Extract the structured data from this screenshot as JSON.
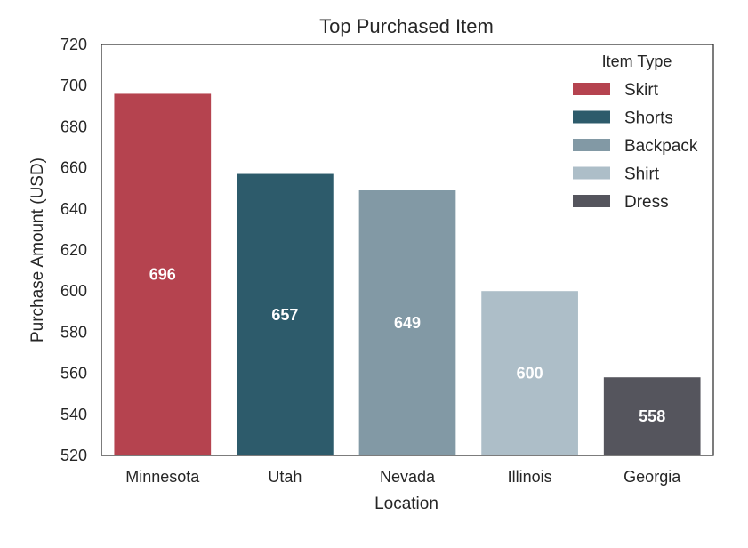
{
  "chart_data": {
    "type": "bar",
    "title": "Top Purchased Item",
    "xlabel": "Location",
    "ylabel": "Purchase Amount (USD)",
    "ylim": [
      520,
      720
    ],
    "yticks": [
      "520",
      "540",
      "560",
      "580",
      "600",
      "620",
      "640",
      "660",
      "680",
      "700",
      "720"
    ],
    "categories": [
      "Minnesota",
      "Utah",
      "Nevada",
      "Illinois",
      "Georgia"
    ],
    "values": [
      696,
      657,
      649,
      600,
      558
    ],
    "items": [
      "Skirt",
      "Shorts",
      "Backpack",
      "Shirt",
      "Dress"
    ],
    "data_labels": [
      "696",
      "657",
      "649",
      "600",
      "558"
    ],
    "colors": [
      "#b5434f",
      "#2d5b6b",
      "#8299a5",
      "#adbec8",
      "#55555d"
    ],
    "grid": false,
    "legend": {
      "title": "Item Type",
      "placement": "top-right",
      "entries": [
        "Skirt",
        "Shorts",
        "Backpack",
        "Shirt",
        "Dress"
      ]
    }
  }
}
